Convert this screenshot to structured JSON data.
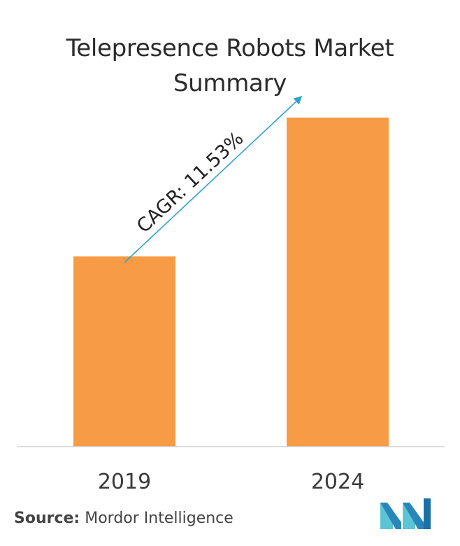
{
  "title_lines": [
    "Telepresence Robots Market",
    "Summary"
  ],
  "chart_data": {
    "type": "bar",
    "categories": [
      "2019",
      "2024"
    ],
    "values": [
      1,
      1.73
    ],
    "annotations": [
      "CAGR: 11.53%"
    ],
    "bar_color": "#F89B45",
    "arrow_color": "#2FA3C6",
    "axis_color": "#d0d0d0",
    "grid": false,
    "y_axis_shown": false
  },
  "source": {
    "label": "Source:",
    "text": "Mordor Intelligence"
  },
  "logo": {
    "icon": "mordor-intelligence-logo",
    "colors": [
      "#5bc5d6",
      "#1d6fa5"
    ]
  }
}
